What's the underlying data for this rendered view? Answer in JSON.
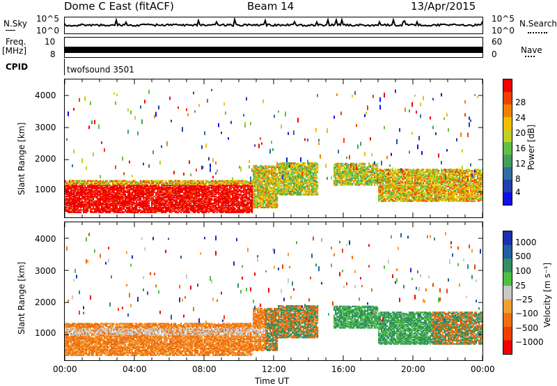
{
  "header": {
    "station": "Dome C East (fitACF)",
    "beam": "Beam 14",
    "date": "13/Apr/2015"
  },
  "noise_panel": {
    "left_label": "N.Sky",
    "right_label": "N.Search",
    "left_ticks": [
      "10^5",
      "10^0"
    ],
    "right_ticks": [
      "10^5",
      "10^0"
    ]
  },
  "freq_panel": {
    "left_label": "Freq.",
    "left_unit": "[MHz]",
    "right_label": "Nave",
    "left_ticks": [
      "10",
      "8"
    ],
    "right_ticks": [
      "60",
      "0"
    ]
  },
  "cpid": {
    "label": "CPID",
    "value": "twofsound 3501"
  },
  "chart_data": [
    {
      "type": "heatmap",
      "ylabel": "Slant Range [km]",
      "xlabel": "Time UT",
      "x_ticks": [
        "00:00",
        "04:00",
        "08:00",
        "12:00",
        "16:00",
        "20:00",
        "00:00"
      ],
      "y_ticks": [
        "1000",
        "2000",
        "3000",
        "4000"
      ],
      "ylim": [
        200,
        4500
      ],
      "colorbar": {
        "label": "Power [dB]",
        "ticks": [
          "4",
          "8",
          "12",
          "16",
          "20",
          "24",
          "28"
        ],
        "colors": [
          "#1010e8",
          "#2040b0",
          "#3070a0",
          "#40a060",
          "#60c040",
          "#c0d020",
          "#f0c000",
          "#f08000",
          "#f04000",
          "#f00000"
        ]
      }
    },
    {
      "type": "heatmap",
      "ylabel": "Slant Range [km]",
      "xlabel": "Time UT",
      "x_ticks": [
        "00:00",
        "04:00",
        "08:00",
        "12:00",
        "16:00",
        "20:00",
        "00:00"
      ],
      "y_ticks": [
        "1000",
        "2000",
        "3000",
        "4000"
      ],
      "ylim": [
        200,
        4500
      ],
      "colorbar": {
        "label": "Velocity [m s⁻¹]",
        "ticks": [
          "1000",
          "500",
          "100",
          "25",
          "−25",
          "−100",
          "−500",
          "−1000"
        ],
        "colors": [
          "#1830b0",
          "#2060a0",
          "#309060",
          "#50c040",
          "#c8c8c8",
          "#f0a030",
          "#f07010",
          "#f04000",
          "#f00000"
        ]
      }
    }
  ]
}
